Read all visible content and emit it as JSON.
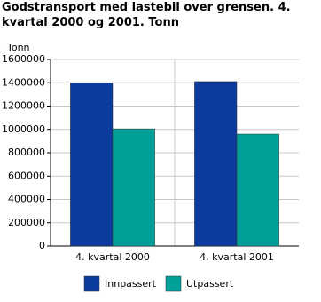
{
  "chart_data": {
    "type": "bar",
    "title": "Godstransport med lastebil over grensen. 4. kvartal 2000 og 2001. Tonn",
    "y_label": "Tonn",
    "categories": [
      "4. kvartal 2000",
      "4. kvartal 2001"
    ],
    "series": [
      {
        "name": "Innpassert",
        "color": "#0b3b9c",
        "values": [
          1400000,
          1410000
        ]
      },
      {
        "name": "Utpassert",
        "color": "#00a09a",
        "values": [
          1005000,
          960000
        ]
      }
    ],
    "ylim": [
      0,
      1600000
    ],
    "yticks": [
      0,
      200000,
      400000,
      600000,
      800000,
      1000000,
      1200000,
      1400000,
      1600000
    ],
    "grid": true
  }
}
